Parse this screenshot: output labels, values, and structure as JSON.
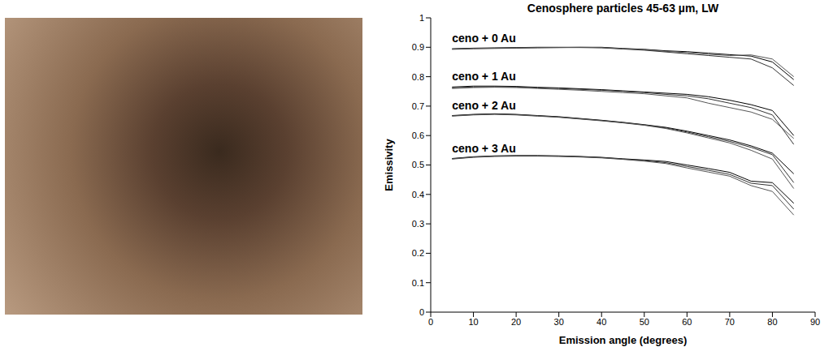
{
  "chart_data": {
    "type": "line",
    "title": "Cenosphere particles 45-63 µm, LW",
    "x_label": "Emission angle (degrees)",
    "y_label": "Emissivity",
    "x": [
      5,
      10,
      15,
      20,
      25,
      30,
      35,
      40,
      45,
      50,
      55,
      60,
      65,
      70,
      75,
      80,
      85
    ],
    "series": [
      {
        "name": "ceno + 0 Au",
        "color": "#000000",
        "line_style": "solid",
        "values": [
          [
            0.895,
            0.897,
            0.898,
            0.899,
            0.9,
            0.9,
            0.9,
            0.9,
            0.896,
            0.893,
            0.888,
            0.885,
            0.88,
            0.875,
            0.87,
            0.85,
            0.79
          ],
          [
            0.893,
            0.895,
            0.896,
            0.897,
            0.898,
            0.899,
            0.899,
            0.898,
            0.894,
            0.89,
            0.884,
            0.878,
            0.872,
            0.866,
            0.86,
            0.83,
            0.77
          ],
          [
            0.894,
            0.896,
            0.897,
            0.898,
            0.899,
            0.899,
            0.9,
            0.899,
            0.895,
            0.892,
            0.886,
            0.882,
            0.876,
            0.872,
            0.874,
            0.86,
            0.8
          ]
        ]
      },
      {
        "name": "ceno + 1 Au",
        "color": "#000000",
        "line_style": "solid",
        "values": [
          [
            0.765,
            0.768,
            0.768,
            0.767,
            0.764,
            0.762,
            0.759,
            0.756,
            0.752,
            0.748,
            0.744,
            0.74,
            0.732,
            0.72,
            0.705,
            0.685,
            0.6
          ],
          [
            0.762,
            0.765,
            0.766,
            0.765,
            0.762,
            0.76,
            0.757,
            0.754,
            0.75,
            0.746,
            0.74,
            0.735,
            0.725,
            0.71,
            0.695,
            0.67,
            0.57
          ],
          [
            0.76,
            0.763,
            0.764,
            0.763,
            0.76,
            0.757,
            0.754,
            0.75,
            0.746,
            0.742,
            0.735,
            0.728,
            0.71,
            0.695,
            0.68,
            0.655,
            0.59
          ]
        ]
      },
      {
        "name": "ceno + 2 Au",
        "color": "#000000",
        "line_style": "solid",
        "values": [
          [
            0.668,
            0.672,
            0.674,
            0.672,
            0.668,
            0.664,
            0.658,
            0.652,
            0.645,
            0.637,
            0.628,
            0.615,
            0.6,
            0.585,
            0.565,
            0.54,
            0.47
          ],
          [
            0.667,
            0.671,
            0.673,
            0.671,
            0.667,
            0.663,
            0.657,
            0.651,
            0.644,
            0.636,
            0.626,
            0.612,
            0.596,
            0.58,
            0.56,
            0.535,
            0.44
          ],
          [
            0.666,
            0.67,
            0.672,
            0.67,
            0.666,
            0.662,
            0.656,
            0.65,
            0.643,
            0.635,
            0.624,
            0.609,
            0.592,
            0.575,
            0.55,
            0.52,
            0.42
          ]
        ]
      },
      {
        "name": "ceno + 3 Au",
        "color": "#000000",
        "line_style": "solid",
        "values": [
          [
            0.522,
            0.528,
            0.531,
            0.532,
            0.532,
            0.531,
            0.529,
            0.526,
            0.521,
            0.517,
            0.512,
            0.5,
            0.488,
            0.475,
            0.445,
            0.44,
            0.37
          ],
          [
            0.521,
            0.527,
            0.53,
            0.531,
            0.531,
            0.53,
            0.528,
            0.525,
            0.52,
            0.515,
            0.508,
            0.495,
            0.482,
            0.468,
            0.438,
            0.43,
            0.35
          ],
          [
            0.52,
            0.526,
            0.529,
            0.53,
            0.53,
            0.529,
            0.527,
            0.524,
            0.519,
            0.513,
            0.505,
            0.49,
            0.476,
            0.462,
            0.43,
            0.41,
            0.33
          ]
        ]
      }
    ],
    "xlim": [
      0,
      90
    ],
    "xticks": [
      0,
      10,
      20,
      30,
      40,
      50,
      60,
      70,
      80,
      90
    ],
    "ylim": [
      0,
      1
    ],
    "yticks": [
      0,
      0.1,
      0.2,
      0.3,
      0.4,
      0.5,
      0.6,
      0.7,
      0.8,
      0.9,
      1
    ],
    "grid": false
  }
}
